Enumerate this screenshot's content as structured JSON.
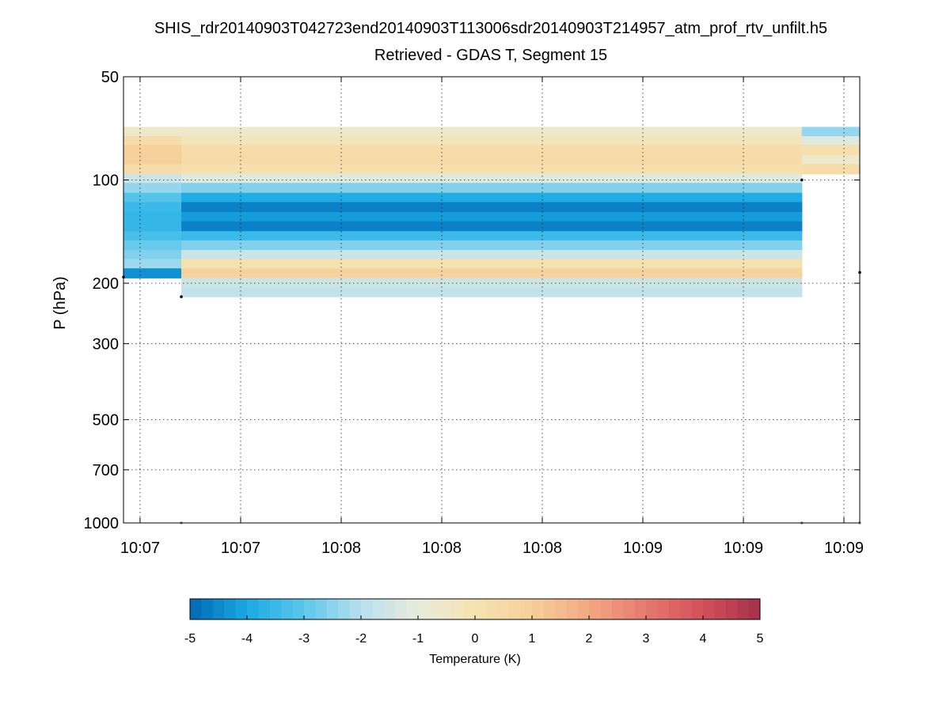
{
  "figure": {
    "title_line1": "SHIS_rdr20140903T042723end20140903T113006sdr20140903T214957_atm_prof_rtv_unfilt.h5",
    "title_line2": "Retrieved - GDAS T, Segment 15"
  },
  "chart_data": {
    "type": "heatmap",
    "ylabel": "P (hPa)",
    "y_scale": "log",
    "y_reversed": true,
    "ylim": [
      50,
      1000
    ],
    "y_ticks": [
      50,
      100,
      200,
      300,
      500,
      700,
      1000
    ],
    "x_tick_labels": [
      "10:07",
      "10:07",
      "10:08",
      "10:08",
      "10:08",
      "10:09",
      "10:09",
      "10:09"
    ],
    "x_tick_positions": [
      0.0225,
      0.1591,
      0.2957,
      0.4323,
      0.5688,
      0.7054,
      0.842,
      0.9785
    ],
    "grid": true,
    "colorbar": {
      "label": "Temperature (K)",
      "range": [
        -5,
        5
      ],
      "ticks": [
        -5,
        -4,
        -3,
        -2,
        -1,
        0,
        1,
        2,
        3,
        4,
        5
      ],
      "placement": "bottom",
      "colormap": [
        "#0168b4",
        "#1aaae3",
        "#5cc7ec",
        "#b8e0ee",
        "#e8ecdc",
        "#f5e3b0",
        "#f6cf9a",
        "#f2a882",
        "#e57a6e",
        "#d3505a",
        "#a4304a"
      ]
    },
    "columns": [
      {
        "x_range": [
          0.0,
          0.0785
        ],
        "layers": [
          {
            "p_top": 70.0,
            "p_bottom": 74.5,
            "value": -0.6
          },
          {
            "p_top": 74.5,
            "p_bottom": 79.0,
            "value": 0.35
          },
          {
            "p_top": 79.0,
            "p_bottom": 84.5,
            "value": 0.9
          },
          {
            "p_top": 84.5,
            "p_bottom": 90.0,
            "value": 1.0
          },
          {
            "p_top": 90.0,
            "p_bottom": 96.0,
            "value": 0.35
          },
          {
            "p_top": 96.0,
            "p_bottom": 102.0,
            "value": -1.6
          },
          {
            "p_top": 102.0,
            "p_bottom": 109.0,
            "value": -2.4
          },
          {
            "p_top": 109.0,
            "p_bottom": 116.0,
            "value": -3.1
          },
          {
            "p_top": 116.0,
            "p_bottom": 124.0,
            "value": -3.5
          },
          {
            "p_top": 124.0,
            "p_bottom": 132.0,
            "value": -3.6
          },
          {
            "p_top": 132.0,
            "p_bottom": 141.0,
            "value": -3.6
          },
          {
            "p_top": 141.0,
            "p_bottom": 150.0,
            "value": -3.3
          },
          {
            "p_top": 150.0,
            "p_bottom": 160.0,
            "value": -2.9
          },
          {
            "p_top": 160.0,
            "p_bottom": 170.0,
            "value": -2.6
          },
          {
            "p_top": 170.0,
            "p_bottom": 181.0,
            "value": -2.3
          },
          {
            "p_top": 181.0,
            "p_bottom": 193.0,
            "value": -4.4
          }
        ]
      },
      {
        "x_range": [
          0.0785,
          0.9213
        ],
        "layers": [
          {
            "p_top": 70.0,
            "p_bottom": 74.5,
            "value": -0.6
          },
          {
            "p_top": 74.5,
            "p_bottom": 79.0,
            "value": -0.2
          },
          {
            "p_top": 79.0,
            "p_bottom": 84.5,
            "value": 0.3
          },
          {
            "p_top": 84.5,
            "p_bottom": 90.0,
            "value": 0.4
          },
          {
            "p_top": 90.0,
            "p_bottom": 96.0,
            "value": 0.2
          },
          {
            "p_top": 96.0,
            "p_bottom": 102.0,
            "value": -1.2
          },
          {
            "p_top": 102.0,
            "p_bottom": 109.0,
            "value": -2.6
          },
          {
            "p_top": 109.0,
            "p_bottom": 116.0,
            "value": -3.9
          },
          {
            "p_top": 116.0,
            "p_bottom": 124.0,
            "value": -4.6
          },
          {
            "p_top": 124.0,
            "p_bottom": 132.0,
            "value": -4.2
          },
          {
            "p_top": 132.0,
            "p_bottom": 141.0,
            "value": -4.6
          },
          {
            "p_top": 141.0,
            "p_bottom": 150.0,
            "value": -3.5
          },
          {
            "p_top": 150.0,
            "p_bottom": 160.0,
            "value": -2.6
          },
          {
            "p_top": 160.0,
            "p_bottom": 170.0,
            "value": -1.6
          },
          {
            "p_top": 170.0,
            "p_bottom": 181.0,
            "value": 0.1
          },
          {
            "p_top": 181.0,
            "p_bottom": 193.0,
            "value": 0.8
          },
          {
            "p_top": 193.0,
            "p_bottom": 206.0,
            "value": -1.6
          },
          {
            "p_top": 206.0,
            "p_bottom": 219.0,
            "value": -1.8
          }
        ]
      },
      {
        "x_range": [
          0.9213,
          1.0
        ],
        "layers": [
          {
            "p_top": 70.0,
            "p_bottom": 74.5,
            "value": -2.4
          },
          {
            "p_top": 74.5,
            "p_bottom": 79.0,
            "value": -1.2
          },
          {
            "p_top": 79.0,
            "p_bottom": 84.5,
            "value": 0.2
          },
          {
            "p_top": 84.5,
            "p_bottom": 90.0,
            "value": -0.6
          },
          {
            "p_top": 90.0,
            "p_bottom": 96.0,
            "value": 0.35
          }
        ]
      }
    ],
    "markers": [
      {
        "x": 0.0,
        "p": 192,
        "color": "#000000"
      },
      {
        "x": 0.0785,
        "p": 219,
        "color": "#000000"
      },
      {
        "x": 0.9213,
        "p": 100,
        "color": "#000000"
      },
      {
        "x": 1.0,
        "p": 186,
        "color": "#000000"
      },
      {
        "x": 0.0785,
        "p": 1000,
        "color": "#888888"
      },
      {
        "x": 0.9213,
        "p": 1000,
        "color": "#888888"
      },
      {
        "x": 1.0,
        "p": 1000,
        "color": "#888888"
      }
    ]
  }
}
